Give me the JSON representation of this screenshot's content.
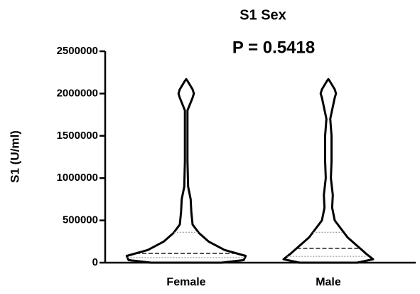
{
  "chart_data": {
    "type": "violin",
    "title": "S1 Sex",
    "annotation": "P = 0.5418",
    "y_label": "S1 (U/ml)",
    "categories": [
      "Female",
      "Male"
    ],
    "ylim": [
      0,
      2500000
    ],
    "yticks": [
      0,
      500000,
      1000000,
      1500000,
      2000000,
      2500000
    ],
    "color": "#000000",
    "series": [
      {
        "name": "Female",
        "median": 110000,
        "q1": 60000,
        "q3": 360000,
        "density_y": [
          0,
          30000,
          80000,
          150000,
          250000,
          350000,
          450000,
          600000,
          750000,
          900000,
          1200000,
          1500000,
          1800000,
          1950000,
          2000000,
          2050000,
          2150000,
          2170000
        ],
        "density_width": [
          0.55,
          0.9,
          0.93,
          0.6,
          0.35,
          0.2,
          0.1,
          0.08,
          0.07,
          0.03,
          0.02,
          0.02,
          0.02,
          0.1,
          0.12,
          0.1,
          0.02,
          0
        ]
      },
      {
        "name": "Male",
        "median": 170000,
        "q1": 75000,
        "q3": 360000,
        "density_y": [
          0,
          40000,
          100000,
          200000,
          300000,
          400000,
          500000,
          650000,
          800000,
          1000000,
          1200000,
          1500000,
          1700000,
          1950000,
          2000000,
          2050000,
          2150000,
          2170000
        ],
        "density_width": [
          0.45,
          0.7,
          0.6,
          0.45,
          0.3,
          0.2,
          0.1,
          0.06,
          0.07,
          0.04,
          0.05,
          0.05,
          0.03,
          0.1,
          0.12,
          0.1,
          0.02,
          0
        ]
      }
    ]
  }
}
